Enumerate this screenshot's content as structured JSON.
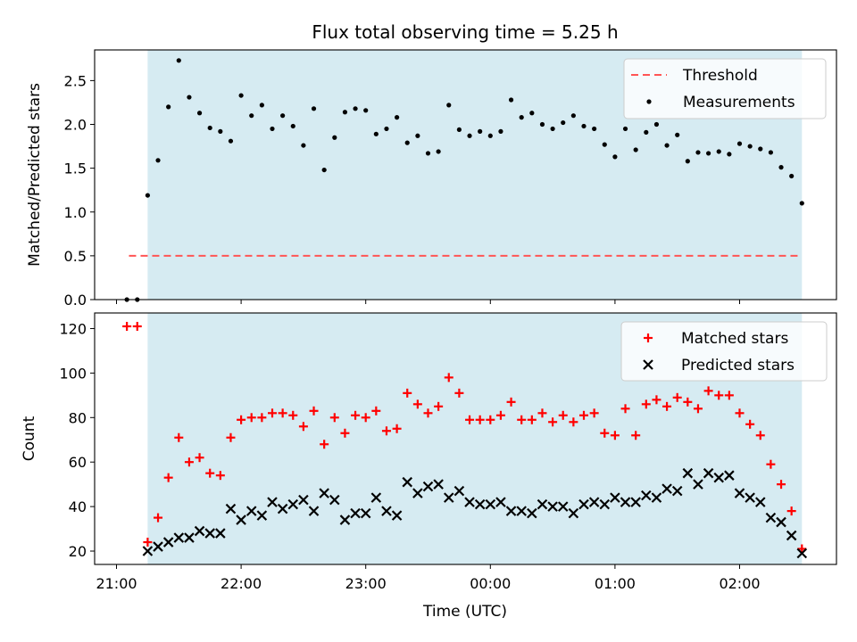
{
  "title": "Flux total observing time = 5.25 h",
  "colors": {
    "shade": "#add8e6",
    "threshold": "#ff5555",
    "matched": "#ff0000",
    "predicted": "#000000",
    "measurement": "#000000"
  },
  "chart_data": [
    {
      "type": "scatter",
      "ylabel": "Matched/Predicted stars",
      "ylim": [
        0,
        2.85
      ],
      "yticks": [
        "0.0",
        "0.5",
        "1.0",
        "1.5",
        "2.0",
        "2.5"
      ],
      "threshold": 0.5,
      "threshold_range": [
        "21:06",
        "02:30"
      ],
      "shaded_range": [
        "21:15",
        "02:30"
      ],
      "legend": {
        "position": "top-right",
        "threshold_label": "Threshold",
        "measurements_label": "Measurements"
      },
      "series": [
        {
          "name": "Measurements",
          "x": [
            "21:05",
            "21:10",
            "21:15",
            "21:20",
            "21:25",
            "21:30",
            "21:35",
            "21:40",
            "21:45",
            "21:50",
            "21:55",
            "22:00",
            "22:05",
            "22:10",
            "22:15",
            "22:20",
            "22:25",
            "22:30",
            "22:35",
            "22:40",
            "22:45",
            "22:50",
            "22:55",
            "23:00",
            "23:05",
            "23:10",
            "23:15",
            "23:20",
            "23:25",
            "23:30",
            "23:35",
            "23:40",
            "23:45",
            "23:50",
            "23:55",
            "00:00",
            "00:05",
            "00:10",
            "00:15",
            "00:20",
            "00:25",
            "00:30",
            "00:35",
            "00:40",
            "00:45",
            "00:50",
            "00:55",
            "01:00",
            "01:05",
            "01:10",
            "01:15",
            "01:20",
            "01:25",
            "01:30",
            "01:35",
            "01:40",
            "01:45",
            "01:50",
            "01:55",
            "02:00",
            "02:05",
            "02:10",
            "02:15",
            "02:20",
            "02:25",
            "02:30"
          ],
          "values": [
            0,
            0,
            1.19,
            1.59,
            2.2,
            2.73,
            2.31,
            2.13,
            1.96,
            1.92,
            1.81,
            2.33,
            2.1,
            2.22,
            1.95,
            2.1,
            1.98,
            1.76,
            2.18,
            1.48,
            1.85,
            2.14,
            2.18,
            2.16,
            1.89,
            1.95,
            2.08,
            1.79,
            1.87,
            1.67,
            1.69,
            2.22,
            1.94,
            1.87,
            1.92,
            1.87,
            1.92,
            2.28,
            2.08,
            2.13,
            2.0,
            1.95,
            2.02,
            2.1,
            1.98,
            1.95,
            1.77,
            1.63,
            1.95,
            1.71,
            1.91,
            2.0,
            1.76,
            1.88,
            1.58,
            1.68,
            1.67,
            1.69,
            1.66,
            1.78,
            1.75,
            1.72,
            1.68,
            1.51,
            1.41,
            1.1
          ]
        }
      ]
    },
    {
      "type": "scatter",
      "xlabel": "Time (UTC)",
      "ylabel": "Count",
      "ylim": [
        14,
        127
      ],
      "yticks": [
        "20",
        "40",
        "60",
        "80",
        "100",
        "120"
      ],
      "xticks": [
        "21:00",
        "22:00",
        "23:00",
        "00:00",
        "01:00",
        "02:00"
      ],
      "shaded_range": [
        "21:15",
        "02:30"
      ],
      "legend": {
        "position": "top-right"
      },
      "series": [
        {
          "name": "Matched stars",
          "x": [
            "21:05",
            "21:10",
            "21:15",
            "21:20",
            "21:25",
            "21:30",
            "21:35",
            "21:40",
            "21:45",
            "21:50",
            "21:55",
            "22:00",
            "22:05",
            "22:10",
            "22:15",
            "22:20",
            "22:25",
            "22:30",
            "22:35",
            "22:40",
            "22:45",
            "22:50",
            "22:55",
            "23:00",
            "23:05",
            "23:10",
            "23:15",
            "23:20",
            "23:25",
            "23:30",
            "23:35",
            "23:40",
            "23:45",
            "23:50",
            "23:55",
            "00:00",
            "00:05",
            "00:10",
            "00:15",
            "00:20",
            "00:25",
            "00:30",
            "00:35",
            "00:40",
            "00:45",
            "00:50",
            "00:55",
            "01:00",
            "01:05",
            "01:10",
            "01:15",
            "01:20",
            "01:25",
            "01:30",
            "01:35",
            "01:40",
            "01:45",
            "01:50",
            "01:55",
            "02:00",
            "02:05",
            "02:10",
            "02:15",
            "02:20",
            "02:25",
            "02:30"
          ],
          "values": [
            121,
            121,
            24,
            35,
            53,
            71,
            60,
            62,
            55,
            54,
            71,
            79,
            80,
            80,
            82,
            82,
            81,
            76,
            83,
            68,
            80,
            73,
            81,
            80,
            83,
            74,
            75,
            91,
            86,
            82,
            85,
            98,
            91,
            79,
            79,
            79,
            81,
            87,
            79,
            79,
            82,
            78,
            81,
            78,
            81,
            82,
            73,
            72,
            84,
            72,
            86,
            88,
            85,
            89,
            87,
            84,
            92,
            90,
            90,
            82,
            77,
            72,
            59,
            50,
            38,
            21
          ]
        },
        {
          "name": "Predicted stars",
          "x": [
            "21:15",
            "21:20",
            "21:25",
            "21:30",
            "21:35",
            "21:40",
            "21:45",
            "21:50",
            "21:55",
            "22:00",
            "22:05",
            "22:10",
            "22:15",
            "22:20",
            "22:25",
            "22:30",
            "22:35",
            "22:40",
            "22:45",
            "22:50",
            "22:55",
            "23:00",
            "23:05",
            "23:10",
            "23:15",
            "23:20",
            "23:25",
            "23:30",
            "23:35",
            "23:40",
            "23:45",
            "23:50",
            "23:55",
            "00:00",
            "00:05",
            "00:10",
            "00:15",
            "00:20",
            "00:25",
            "00:30",
            "00:35",
            "00:40",
            "00:45",
            "00:50",
            "00:55",
            "01:00",
            "01:05",
            "01:10",
            "01:15",
            "01:20",
            "01:25",
            "01:30",
            "01:35",
            "01:40",
            "01:45",
            "01:50",
            "01:55",
            "02:00",
            "02:05",
            "02:10",
            "02:15",
            "02:20",
            "02:25",
            "02:30"
          ],
          "values": [
            20,
            22,
            24,
            26,
            26,
            29,
            28,
            28,
            39,
            34,
            38,
            36,
            42,
            39,
            41,
            43,
            38,
            46,
            43,
            34,
            37,
            37,
            44,
            38,
            36,
            51,
            46,
            49,
            50,
            44,
            47,
            42,
            41,
            41,
            42,
            38,
            38,
            37,
            41,
            40,
            40,
            37,
            41,
            42,
            41,
            44,
            42,
            42,
            45,
            44,
            48,
            47,
            55,
            50,
            55,
            53,
            54,
            46,
            44,
            42,
            35,
            33,
            27,
            19
          ]
        }
      ]
    }
  ]
}
